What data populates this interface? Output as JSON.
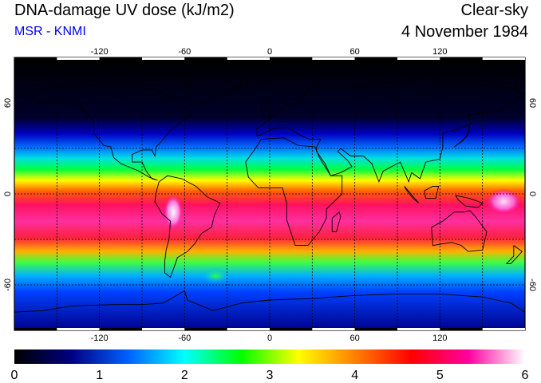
{
  "header": {
    "title": "DNA-damage UV dose (kJ/m2)",
    "source": "MSR - KNMI",
    "sky_condition": "Clear-sky",
    "date": "4 November 1984"
  },
  "colors": {
    "source_text": "#0000ff",
    "frame": "#000000",
    "grid": "#000000"
  },
  "map": {
    "projection": "equirectangular",
    "lon_range": [
      -180,
      180
    ],
    "lat_range": [
      -90,
      90
    ],
    "lon_ticks": [
      "-120",
      "-60",
      "0",
      "60",
      "120"
    ],
    "lat_ticks": [
      "60",
      "0",
      "-60"
    ],
    "grid_spacing_deg": 30,
    "grid_style": "dotted"
  },
  "colorbar": {
    "min": 0,
    "max": 6,
    "labels": [
      "0",
      "1",
      "2",
      "3",
      "4",
      "5",
      "6"
    ],
    "colormap": [
      "#000000",
      "#000080",
      "#0060ff",
      "#00ffff",
      "#00ff00",
      "#ffff00",
      "#ff8000",
      "#ff0000",
      "#ff00a0",
      "#ffffff"
    ]
  }
}
